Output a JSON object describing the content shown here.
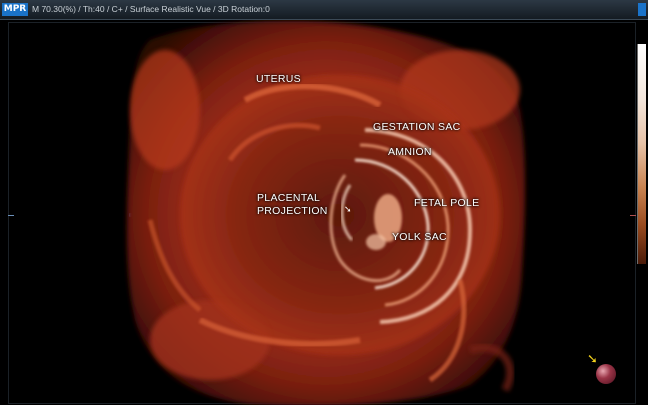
{
  "toolbar": {
    "badge": "MPR",
    "status": "M 70.30(%) / Th:40 / C+ / Surface Realistic Vue / 3D Rotation:0"
  },
  "labels": {
    "uterus": "UTERUS",
    "gestation_sac": "GESTATION SAC",
    "amnion": "AMNION",
    "placental_line1": "PLACENTAL",
    "placental_line2": "PROJECTION",
    "fetal_pole": "FETAL POLE",
    "yolk_sac": "YOLK SAC"
  },
  "icons": {
    "orientation_ball": "orientation-ball-icon",
    "pointer_arrow": "arrow-icon"
  },
  "colors": {
    "badge": "#1a73c9",
    "rendering_base": "#b8391c",
    "label_text": "#ffffff"
  }
}
